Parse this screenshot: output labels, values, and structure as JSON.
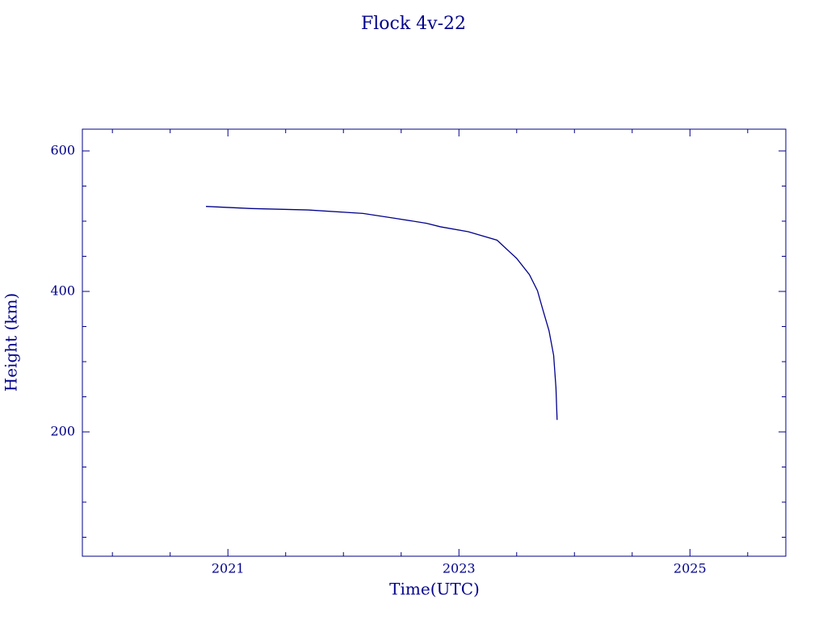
{
  "chart_data": {
    "type": "line",
    "title": "Flock 4v-22",
    "x_label": "Time(UTC)",
    "y_label": "Height (km)",
    "color": "#00008b",
    "x": [
      2020.81,
      2021.2,
      2021.69,
      2022.17,
      2022.45,
      2022.72,
      2022.84,
      2023.08,
      2023.33,
      2023.5,
      2023.61,
      2023.68,
      2023.73,
      2023.78,
      2023.82,
      2023.84,
      2023.85
    ],
    "values": [
      521,
      518,
      516,
      511,
      504,
      497,
      492,
      485,
      473,
      447,
      424,
      401,
      372,
      344,
      309,
      263,
      217
    ],
    "xlim": [
      2019.74,
      2025.83
    ],
    "ylim": [
      23,
      631
    ],
    "xticks": [
      2021,
      2023,
      2025
    ],
    "yticks": [
      200,
      400,
      600
    ],
    "xminorticks": [
      2020,
      2020.5,
      2021.5,
      2022,
      2022.5,
      2023.5,
      2024,
      2024.5,
      2025.5
    ],
    "yminorticks": [
      50,
      100,
      150,
      250,
      300,
      350,
      450,
      500,
      550
    ]
  }
}
